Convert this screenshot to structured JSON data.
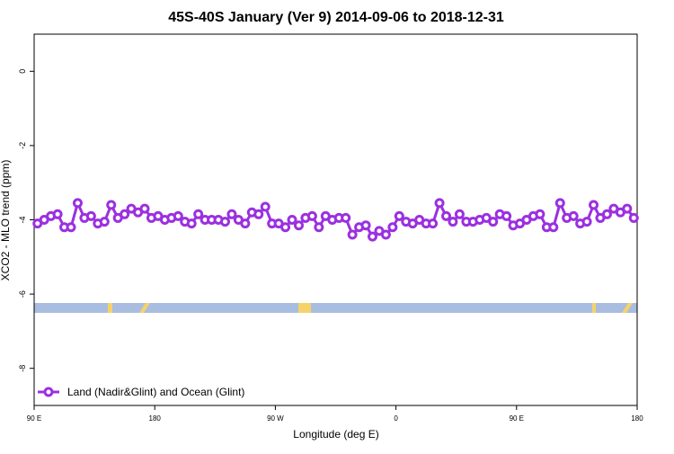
{
  "chart_data": {
    "type": "line",
    "title": "45S-40S January (Ver 9)   2014-09-06 to 2018-12-31",
    "x_label": "Longitude (deg E)",
    "y_label": "XCO2 - MLO trend (ppm)",
    "xlim": [
      90,
      540
    ],
    "ylim": [
      -9,
      1
    ],
    "xticks": [
      {
        "value": 90,
        "label": "90 E"
      },
      {
        "value": 180,
        "label": "180"
      },
      {
        "value": 270,
        "label": "90 W"
      },
      {
        "value": 360,
        "label": "0"
      },
      {
        "value": 450,
        "label": "90 E"
      },
      {
        "value": 540,
        "label": "180"
      }
    ],
    "yticks": [
      -8,
      -6,
      -4,
      -2,
      0
    ],
    "legend": "bottom-left",
    "x": [
      92.5,
      97.5,
      102.5,
      107.5,
      112.5,
      117.5,
      122.5,
      127.5,
      132.5,
      137.5,
      142.5,
      147.5,
      152.5,
      157.5,
      162.5,
      167.5,
      172.5,
      177.5,
      182.5,
      187.5,
      192.5,
      197.5,
      202.5,
      207.5,
      212.5,
      217.5,
      222.5,
      227.5,
      232.5,
      237.5,
      242.5,
      247.5,
      252.5,
      257.5,
      262.5,
      267.5,
      272.5,
      277.5,
      282.5,
      287.5,
      292.5,
      297.5,
      302.5,
      307.5,
      312.5,
      317.5,
      322.5,
      327.5,
      332.5,
      337.5,
      342.5,
      347.5,
      352.5,
      357.5,
      362.5,
      367.5,
      372.5,
      377.5,
      382.5,
      387.5,
      392.5,
      397.5,
      402.5,
      407.5,
      412.5,
      417.5,
      422.5,
      427.5,
      432.5,
      437.5,
      442.5,
      447.5,
      452.5,
      457.5,
      462.5,
      467.5,
      472.5,
      477.5,
      482.5,
      487.5,
      492.5,
      497.5,
      502.5,
      507.5,
      512.5,
      517.5,
      522.5,
      527.5,
      532.5,
      537.5
    ],
    "series": [
      {
        "name": "Land (Nadir&Glint) and Ocean (Glint)",
        "color": "#9b30e0",
        "values": [
          -4.1,
          -4.0,
          -3.9,
          -3.85,
          -4.2,
          -4.2,
          -3.55,
          -3.95,
          -3.9,
          -4.1,
          -4.05,
          -3.6,
          -3.95,
          -3.85,
          -3.7,
          -3.8,
          -3.7,
          -3.95,
          -3.9,
          -4.0,
          -3.95,
          -3.9,
          -4.05,
          -4.1,
          -3.85,
          -4.0,
          -4.0,
          -4.0,
          -4.05,
          -3.85,
          -4.0,
          -4.1,
          -3.8,
          -3.85,
          -3.65,
          -4.1,
          -4.1,
          -4.2,
          -4.0,
          -4.15,
          -3.95,
          -3.9,
          -4.2,
          -3.9,
          -4.0,
          -3.95,
          -3.95,
          -4.4,
          -4.2,
          -4.15,
          -4.45,
          -4.3,
          -4.4,
          -4.2,
          -3.9,
          -4.05,
          -4.1,
          -4.0,
          -4.1,
          -4.1,
          -3.55,
          -3.9,
          -4.05,
          -3.85,
          -4.05,
          -4.05,
          -4.0,
          -3.95,
          -4.05,
          -3.85,
          -3.9,
          -4.15,
          -4.1,
          -4.0,
          -3.9,
          -3.85,
          -4.2,
          -4.2,
          -3.55,
          -3.95,
          -3.9,
          -4.1,
          -4.05,
          -3.6,
          -3.95,
          -3.85,
          -3.7,
          -3.8,
          -3.7,
          -3.95
        ]
      }
    ]
  }
}
